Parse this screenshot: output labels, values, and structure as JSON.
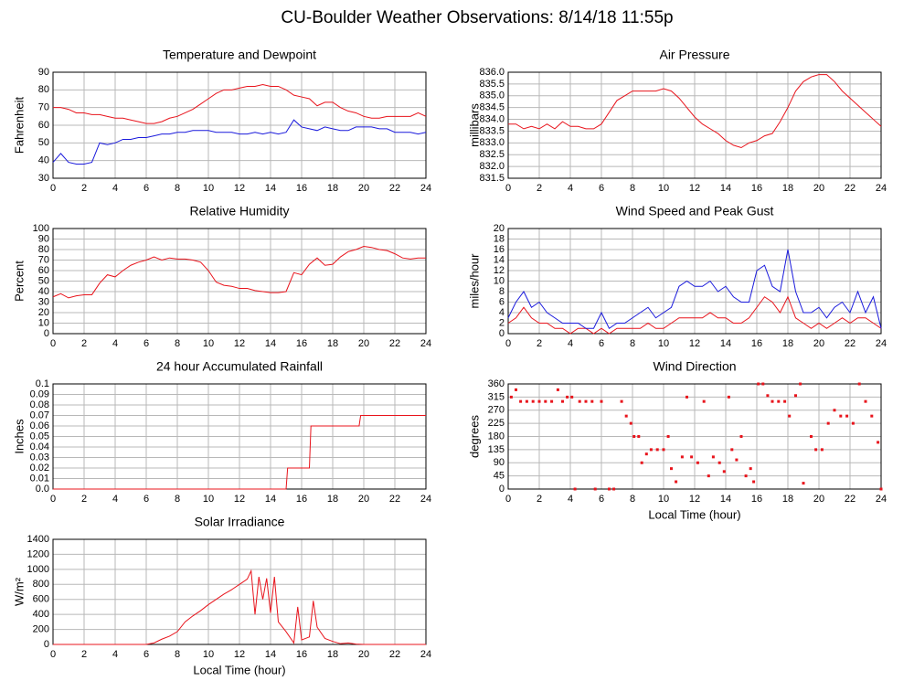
{
  "title": "CU-Boulder Weather Observations: 8/14/18 11:55p",
  "chart_data": [
    {
      "type": "line",
      "title": "Temperature and Dewpoint",
      "ylabel": "Fahrenheit",
      "x": [
        0,
        0.5,
        1,
        1.5,
        2,
        2.5,
        3,
        3.5,
        4,
        4.5,
        5,
        5.5,
        6,
        6.5,
        7,
        7.5,
        8,
        8.5,
        9,
        9.5,
        10,
        10.5,
        11,
        11.5,
        12,
        12.5,
        13,
        13.5,
        14,
        14.5,
        15,
        15.5,
        16,
        16.5,
        17,
        17.5,
        18,
        18.5,
        19,
        19.5,
        20,
        20.5,
        21,
        21.5,
        22,
        22.5,
        23,
        23.5,
        24
      ],
      "series": [
        {
          "color": "#e8141c",
          "values": [
            70,
            70,
            69,
            67,
            67,
            66,
            66,
            65,
            64,
            64,
            63,
            62,
            61,
            61,
            62,
            64,
            65,
            67,
            69,
            72,
            75,
            78,
            80,
            80,
            81,
            82,
            82,
            83,
            82,
            82,
            80,
            77,
            76,
            75,
            71,
            73,
            73,
            70,
            68,
            67,
            65,
            64,
            64,
            65,
            65,
            65,
            65,
            67,
            65
          ]
        },
        {
          "color": "#1a1adc",
          "values": [
            39,
            44,
            39,
            38,
            38,
            39,
            50,
            49,
            50,
            52,
            52,
            53,
            53,
            54,
            55,
            55,
            56,
            56,
            57,
            57,
            57,
            56,
            56,
            56,
            55,
            55,
            56,
            55,
            56,
            55,
            56,
            63,
            59,
            58,
            57,
            59,
            58,
            57,
            57,
            59,
            59,
            59,
            58,
            58,
            56,
            56,
            56,
            55,
            56
          ]
        }
      ],
      "xlim": [
        0,
        24
      ],
      "xticks": [
        0,
        2,
        4,
        6,
        8,
        10,
        12,
        14,
        16,
        18,
        20,
        22,
        24
      ],
      "ylim": [
        30,
        90
      ],
      "yticks": [
        30,
        40,
        50,
        60,
        70,
        80,
        90
      ],
      "grid": true
    },
    {
      "type": "line",
      "title": "Air Pressure",
      "ylabel": "millibars",
      "x": [
        0,
        0.5,
        1,
        1.5,
        2,
        2.5,
        3,
        3.5,
        4,
        4.5,
        5,
        5.5,
        6,
        6.5,
        7,
        7.5,
        8,
        8.5,
        9,
        9.5,
        10,
        10.5,
        11,
        11.5,
        12,
        12.5,
        13,
        13.5,
        14,
        14.5,
        15,
        15.5,
        16,
        16.5,
        17,
        17.5,
        18,
        18.5,
        19,
        19.5,
        20,
        20.5,
        21,
        21.5,
        22,
        22.5,
        23,
        23.5,
        24
      ],
      "series": [
        {
          "color": "#e8141c",
          "values": [
            833.8,
            833.8,
            833.6,
            833.7,
            833.6,
            833.8,
            833.6,
            833.9,
            833.7,
            833.7,
            833.6,
            833.6,
            833.8,
            834.3,
            834.8,
            835.0,
            835.2,
            835.2,
            835.2,
            835.2,
            835.3,
            835.2,
            834.9,
            834.5,
            834.1,
            833.8,
            833.6,
            833.4,
            833.1,
            832.9,
            832.8,
            833.0,
            833.1,
            833.3,
            833.4,
            833.9,
            834.5,
            835.2,
            835.6,
            835.8,
            835.9,
            835.9,
            835.6,
            835.2,
            834.9,
            834.6,
            834.3,
            834.0,
            833.7
          ]
        }
      ],
      "xlim": [
        0,
        24
      ],
      "xticks": [
        0,
        2,
        4,
        6,
        8,
        10,
        12,
        14,
        16,
        18,
        20,
        22,
        24
      ],
      "ylim": [
        831.5,
        836.0
      ],
      "yticks": [
        831.5,
        {
          "value": 832,
          "label": "832.0"
        },
        832.5,
        {
          "value": 833,
          "label": "833.0"
        },
        833.5,
        {
          "value": 834,
          "label": "834.0"
        },
        834.5,
        {
          "value": 835,
          "label": "835.0"
        },
        835.5,
        {
          "value": 836,
          "label": "836.0"
        }
      ],
      "grid": true
    },
    {
      "type": "line",
      "title": "Relative Humidity",
      "ylabel": "Percent",
      "x": [
        0,
        0.5,
        1,
        1.5,
        2,
        2.5,
        3,
        3.5,
        4,
        4.5,
        5,
        5.5,
        6,
        6.5,
        7,
        7.5,
        8,
        8.5,
        9,
        9.5,
        10,
        10.5,
        11,
        11.5,
        12,
        12.5,
        13,
        13.5,
        14,
        14.5,
        15,
        15.5,
        16,
        16.5,
        17,
        17.5,
        18,
        18.5,
        19,
        19.5,
        20,
        20.5,
        21,
        21.5,
        22,
        22.5,
        23,
        23.5,
        24
      ],
      "series": [
        {
          "color": "#e8141c",
          "values": [
            35,
            38,
            34,
            36,
            37,
            37,
            48,
            56,
            54,
            60,
            65,
            68,
            70,
            73,
            70,
            72,
            71,
            71,
            70,
            68,
            60,
            49,
            46,
            45,
            43,
            43,
            41,
            40,
            39,
            39,
            40,
            58,
            56,
            66,
            72,
            65,
            66,
            73,
            78,
            80,
            83,
            82,
            80,
            79,
            76,
            72,
            71,
            72,
            72
          ]
        }
      ],
      "xlim": [
        0,
        24
      ],
      "xticks": [
        0,
        2,
        4,
        6,
        8,
        10,
        12,
        14,
        16,
        18,
        20,
        22,
        24
      ],
      "ylim": [
        0,
        100
      ],
      "yticks": [
        0,
        10,
        20,
        30,
        40,
        50,
        60,
        70,
        80,
        90,
        100
      ],
      "grid": true
    },
    {
      "type": "line",
      "title": "Wind Speed and Peak Gust",
      "ylabel": "miles/hour",
      "x": [
        0,
        0.5,
        1,
        1.5,
        2,
        2.5,
        3,
        3.5,
        4,
        4.5,
        5,
        5.5,
        6,
        6.5,
        7,
        7.5,
        8,
        8.5,
        9,
        9.5,
        10,
        10.5,
        11,
        11.5,
        12,
        12.5,
        13,
        13.5,
        14,
        14.5,
        15,
        15.5,
        16,
        16.5,
        17,
        17.5,
        18,
        18.5,
        19,
        19.5,
        20,
        20.5,
        21,
        21.5,
        22,
        22.5,
        23,
        23.5,
        24
      ],
      "series": [
        {
          "color": "#e8141c",
          "values": [
            2,
            3,
            5,
            3,
            2,
            2,
            1,
            1,
            0,
            1,
            1,
            0,
            1,
            0,
            1,
            1,
            1,
            1,
            2,
            1,
            1,
            2,
            3,
            3,
            3,
            3,
            4,
            3,
            3,
            2,
            2,
            3,
            5,
            7,
            6,
            4,
            7,
            3,
            2,
            1,
            2,
            1,
            2,
            3,
            2,
            3,
            3,
            2,
            1
          ]
        },
        {
          "color": "#1a1adc",
          "values": [
            3,
            6,
            8,
            5,
            6,
            4,
            3,
            2,
            2,
            2,
            1,
            1,
            4,
            1,
            2,
            2,
            3,
            4,
            5,
            3,
            4,
            5,
            9,
            10,
            9,
            9,
            10,
            8,
            9,
            7,
            6,
            6,
            12,
            13,
            9,
            8,
            16,
            8,
            4,
            4,
            5,
            3,
            5,
            6,
            4,
            8,
            4,
            7,
            1
          ]
        }
      ],
      "xlim": [
        0,
        24
      ],
      "xticks": [
        0,
        2,
        4,
        6,
        8,
        10,
        12,
        14,
        16,
        18,
        20,
        22,
        24
      ],
      "ylim": [
        0,
        20
      ],
      "yticks": [
        0,
        2,
        4,
        6,
        8,
        10,
        12,
        14,
        16,
        18,
        20
      ],
      "grid": true
    },
    {
      "type": "line",
      "title": "24 hour Accumulated Rainfall",
      "ylabel": "Inches",
      "x": [
        0,
        15,
        15.1,
        16.5,
        16.6,
        19.7,
        19.8,
        24
      ],
      "series": [
        {
          "color": "#e8141c",
          "values": [
            0,
            0,
            0.02,
            0.02,
            0.06,
            0.06,
            0.07,
            0.07
          ]
        }
      ],
      "xlim": [
        0,
        24
      ],
      "xticks": [
        0,
        2,
        4,
        6,
        8,
        10,
        12,
        14,
        16,
        18,
        20,
        22,
        24
      ],
      "ylim": [
        0,
        0.1
      ],
      "yticks": [
        {
          "value": 0,
          "label": "0.0"
        },
        0.01,
        0.02,
        0.03,
        0.04,
        0.05,
        0.06,
        0.07,
        0.08,
        0.09,
        0.1
      ],
      "grid": true
    },
    {
      "type": "scatter",
      "title": "Wind Direction",
      "ylabel": "degrees",
      "xlabel": "Local Time (hour)",
      "x": [
        0.2,
        0.5,
        0.8,
        1.2,
        1.6,
        2,
        2.4,
        2.8,
        3.2,
        3.5,
        3.8,
        4.1,
        4.3,
        4.6,
        5,
        5.4,
        5.6,
        6,
        6.5,
        6.8,
        7.3,
        7.6,
        7.9,
        8.1,
        8.4,
        8.6,
        8.9,
        9.2,
        9.6,
        10,
        10.3,
        10.5,
        10.8,
        11.2,
        11.5,
        11.8,
        12.2,
        12.6,
        12.9,
        13.2,
        13.6,
        13.9,
        14.2,
        14.4,
        14.7,
        15,
        15.3,
        15.6,
        15.8,
        16.1,
        16.4,
        16.7,
        17,
        17.4,
        17.8,
        18.1,
        18.5,
        18.8,
        19,
        19.5,
        19.8,
        20.2,
        20.6,
        21,
        21.4,
        21.8,
        22.2,
        22.6,
        23,
        23.4,
        23.8,
        24
      ],
      "series": [
        {
          "color": "#e8141c",
          "values": [
            315,
            340,
            300,
            300,
            300,
            300,
            300,
            300,
            340,
            300,
            315,
            315,
            0,
            300,
            300,
            300,
            0,
            300,
            0,
            0,
            300,
            250,
            225,
            180,
            180,
            90,
            120,
            135,
            135,
            135,
            180,
            70,
            25,
            110,
            315,
            110,
            90,
            300,
            45,
            110,
            90,
            60,
            315,
            135,
            100,
            180,
            45,
            70,
            25,
            360,
            360,
            320,
            300,
            300,
            300,
            250,
            320,
            360,
            20,
            180,
            135,
            135,
            225,
            270,
            250,
            250,
            225,
            360,
            300,
            250,
            160,
            0
          ]
        }
      ],
      "xlim": [
        0,
        24
      ],
      "xticks": [
        0,
        2,
        4,
        6,
        8,
        10,
        12,
        14,
        16,
        18,
        20,
        22,
        24
      ],
      "ylim": [
        0,
        360
      ],
      "yticks": [
        0,
        45,
        90,
        135,
        180,
        225,
        270,
        315,
        360
      ],
      "grid": true
    },
    {
      "type": "line",
      "title": "Solar Irradiance",
      "ylabel": "W/m²",
      "xlabel": "Local Time (hour)",
      "x": [
        0,
        1,
        2,
        3,
        4,
        5,
        6,
        6.5,
        7,
        7.5,
        8,
        8.5,
        9,
        9.5,
        10,
        10.5,
        11,
        11.5,
        12,
        12.5,
        12.75,
        13,
        13.25,
        13.5,
        13.75,
        14,
        14.25,
        14.5,
        15,
        15.5,
        15.75,
        16,
        16.5,
        16.75,
        17,
        17.5,
        18,
        18.5,
        19,
        19.5,
        20,
        21,
        22,
        23,
        24
      ],
      "series": [
        {
          "color": "#e8141c",
          "values": [
            0,
            0,
            0,
            0,
            0,
            0,
            0,
            20,
            70,
            110,
            170,
            300,
            380,
            450,
            530,
            600,
            670,
            730,
            800,
            870,
            980,
            400,
            900,
            600,
            880,
            420,
            900,
            300,
            170,
            20,
            500,
            60,
            100,
            580,
            230,
            80,
            40,
            10,
            20,
            5,
            0,
            0,
            0,
            0,
            0
          ]
        }
      ],
      "xlim": [
        0,
        24
      ],
      "xticks": [
        0,
        2,
        4,
        6,
        8,
        10,
        12,
        14,
        16,
        18,
        20,
        22,
        24
      ],
      "ylim": [
        0,
        1400
      ],
      "yticks": [
        0,
        200,
        400,
        600,
        800,
        1000,
        1200,
        1400
      ],
      "grid": true
    }
  ]
}
